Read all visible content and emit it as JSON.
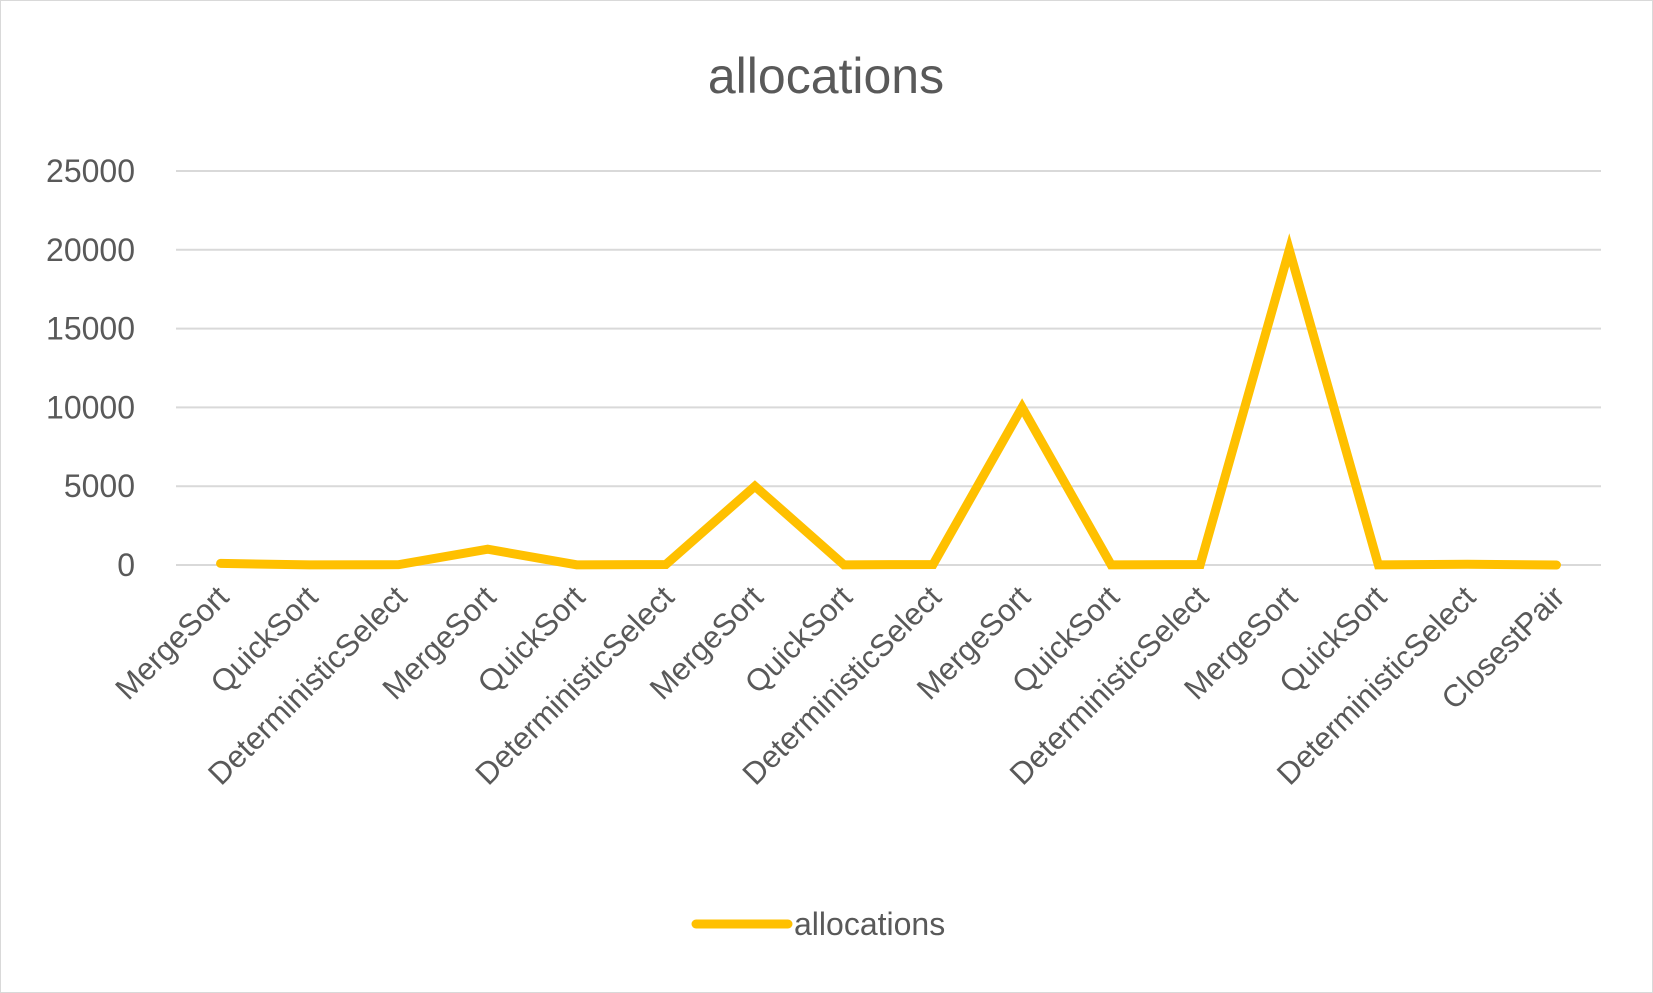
{
  "chart_data": {
    "type": "line",
    "title": "allocations",
    "xlabel": "",
    "ylabel": "",
    "categories": [
      "MergeSort",
      "QuickSort",
      "DeterministicSelect",
      "MergeSort",
      "QuickSort",
      "DeterministicSelect",
      "MergeSort",
      "QuickSort",
      "DeterministicSelect",
      "MergeSort",
      "QuickSort",
      "DeterministicSelect",
      "MergeSort",
      "QuickSort",
      "DeterministicSelect",
      "ClosestPair"
    ],
    "series": [
      {
        "name": "allocations",
        "color": "#ffc000",
        "values": [
          100,
          10,
          20,
          1000,
          10,
          30,
          5000,
          10,
          30,
          10000,
          10,
          30,
          20000,
          10,
          50,
          0
        ]
      }
    ],
    "ylim": [
      0,
      25000
    ],
    "yticks": [
      "0",
      "5000",
      "10000",
      "15000",
      "20000",
      "25000"
    ],
    "grid": true,
    "legend_position": "bottom"
  }
}
